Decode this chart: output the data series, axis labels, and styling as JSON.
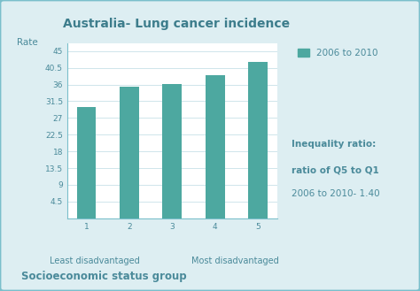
{
  "title": "Australia- Lung cancer incidence",
  "categories": [
    "1",
    "2",
    "3",
    "4",
    "5"
  ],
  "values": [
    30.0,
    35.5,
    36.2,
    38.5,
    42.2
  ],
  "bar_color": "#4da8a0",
  "legend_label": "2006 to 2010",
  "inequality_text_line1": "Inequality ratio:",
  "inequality_text_line2": "ratio of Q5 to Q1",
  "inequality_text_line3": "2006 to 2010- 1.40",
  "xlabel_left": "Least disadvantaged",
  "xlabel_right": "Most disadvantaged",
  "ylabel": "Rate",
  "xlabel_bottom": "Socioeconomic status group",
  "yticks": [
    4.5,
    9.0,
    13.5,
    18.0,
    22.5,
    27.0,
    31.5,
    36.0,
    40.5,
    45.0
  ],
  "ytick_labels": [
    "4.5",
    "9",
    "13.5",
    "18",
    "22.5",
    "27",
    "31.5",
    "36",
    "40.5",
    "45"
  ],
  "ylim": [
    0,
    47
  ],
  "background_color": "#ddeef2",
  "plot_bg_color": "#ffffff",
  "border_color": "#7abfcb",
  "title_color": "#3d7d8c",
  "label_color": "#4a8a9a",
  "text_color": "#4a8a9a",
  "grid_color": "#c8e0e8",
  "title_fontsize": 10,
  "axis_label_fontsize": 7.5,
  "tick_fontsize": 6.5,
  "legend_fontsize": 7.5,
  "inequality_fontsize": 7.5,
  "xlabel_bottom_fontsize": 8.5,
  "bar_width": 0.45
}
